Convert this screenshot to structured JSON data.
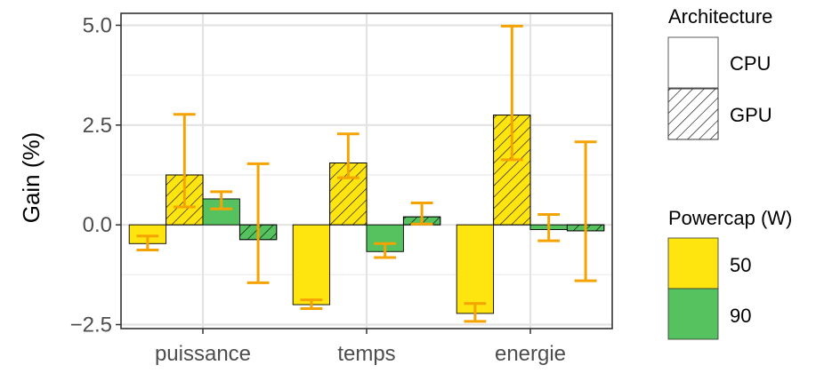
{
  "chart_data": {
    "type": "bar",
    "ylabel": "Gain (%)",
    "xlabel": "",
    "ylim": [
      -2.6,
      5.3
    ],
    "yticks": [
      -2.5,
      0.0,
      2.5,
      5.0
    ],
    "ytick_labels": [
      "−2.5",
      "0.0",
      "2.5",
      "5.0"
    ],
    "categories": [
      "puissance",
      "temps",
      "energie"
    ],
    "grid": true,
    "series": [
      {
        "powercap": "50",
        "architecture": "CPU",
        "values": [
          -0.47,
          -2.0,
          -2.22
        ],
        "err_low": [
          -0.63,
          -2.1,
          -2.42
        ],
        "err_high": [
          -0.28,
          -1.88,
          -1.97
        ]
      },
      {
        "powercap": "50",
        "architecture": "GPU",
        "values": [
          1.25,
          1.55,
          2.75
        ],
        "err_low": [
          0.45,
          1.18,
          1.63
        ],
        "err_high": [
          2.77,
          2.28,
          4.98
        ]
      },
      {
        "powercap": "90",
        "architecture": "CPU",
        "values": [
          0.65,
          -0.67,
          -0.12
        ],
        "err_low": [
          0.4,
          -0.82,
          -0.4
        ],
        "err_high": [
          0.83,
          -0.47,
          0.26
        ]
      },
      {
        "powercap": "90",
        "architecture": "GPU",
        "values": [
          -0.37,
          0.2,
          -0.15
        ],
        "err_low": [
          -1.45,
          0.02,
          -1.4
        ],
        "err_high": [
          1.53,
          0.55,
          2.08
        ]
      }
    ],
    "legend": {
      "placement": "right",
      "architecture": {
        "title": "Architecture",
        "items": [
          "CPU",
          "GPU"
        ]
      },
      "powercap": {
        "title": "Powercap (W)",
        "items": [
          "50",
          "90"
        ]
      }
    },
    "colors": {
      "50": "#FFE50F",
      "90": "#55C25F",
      "error_bar": "#F5A300"
    }
  }
}
